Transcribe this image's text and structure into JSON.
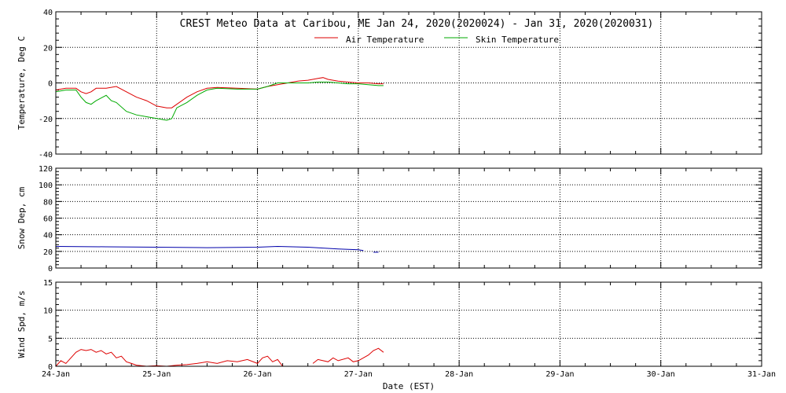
{
  "title": "CREST Meteo Data at Caribou, ME   Jan 24, 2020(2020024) - Jan 31, 2020(2020031)",
  "xlabel": "Date (EST)",
  "chart_data": [
    {
      "type": "line",
      "ylabel": "Temperature, Deg C",
      "ylim": [
        -40,
        40
      ],
      "yticks": [
        -40,
        -20,
        0,
        20,
        40
      ],
      "xlim": [
        0,
        7
      ],
      "x_tick_labels": [
        "24-Jan",
        "25-Jan",
        "26-Jan",
        "27-Jan",
        "28-Jan",
        "29-Jan",
        "30-Jan",
        "31-Jan"
      ],
      "grid": true,
      "legend_position": "top-center",
      "series": [
        {
          "name": "Air Temperature",
          "color": "#dd0000",
          "x": [
            0,
            0.1,
            0.2,
            0.25,
            0.3,
            0.35,
            0.4,
            0.5,
            0.6,
            0.7,
            0.8,
            0.9,
            1.0,
            1.1,
            1.15,
            1.2,
            1.3,
            1.4,
            1.5,
            1.6,
            1.8,
            2.0,
            2.1,
            2.2,
            2.3,
            2.4,
            2.5,
            2.6,
            2.65,
            2.7,
            2.8,
            2.9,
            3.0,
            3.1,
            3.2,
            3.25
          ],
          "y": [
            -4,
            -3,
            -3,
            -5,
            -6,
            -5,
            -3,
            -3,
            -2,
            -5,
            -8,
            -10,
            -13,
            -14,
            -14,
            -12,
            -8,
            -5,
            -3,
            -2.5,
            -3,
            -3.5,
            -2,
            -1,
            0,
            1,
            1.5,
            2.5,
            3,
            2,
            1,
            0.5,
            0,
            0,
            -0.5,
            -0.5
          ]
        },
        {
          "name": "Skin Temperature",
          "color": "#00aa00",
          "x": [
            0,
            0.1,
            0.2,
            0.25,
            0.3,
            0.35,
            0.4,
            0.5,
            0.55,
            0.6,
            0.7,
            0.8,
            0.9,
            1.0,
            1.1,
            1.15,
            1.2,
            1.3,
            1.4,
            1.5,
            1.6,
            1.8,
            2.0,
            2.1,
            2.2,
            2.3,
            2.4,
            2.5,
            2.6,
            2.65,
            2.7,
            2.8,
            2.9,
            3.0,
            3.1,
            3.2,
            3.25
          ],
          "y": [
            -5,
            -4,
            -4,
            -8,
            -11,
            -12,
            -10,
            -7,
            -10,
            -11,
            -16,
            -18,
            -19,
            -20,
            -21,
            -20,
            -14,
            -11,
            -7,
            -4,
            -3,
            -3.5,
            -3.5,
            -2,
            0,
            0,
            0,
            0,
            0.5,
            0.5,
            0.5,
            0,
            -0.5,
            -0.5,
            -1,
            -1.5,
            -1.5
          ]
        }
      ]
    },
    {
      "type": "line",
      "ylabel": "Snow Dep, cm",
      "ylim": [
        0,
        120
      ],
      "yticks": [
        0,
        20,
        40,
        60,
        80,
        100,
        120
      ],
      "xlim": [
        0,
        7
      ],
      "x_tick_labels": [
        "24-Jan",
        "25-Jan",
        "26-Jan",
        "27-Jan",
        "28-Jan",
        "29-Jan",
        "30-Jan",
        "31-Jan"
      ],
      "grid": true,
      "series": [
        {
          "color": "#0000aa",
          "x": [
            0,
            0.5,
            1.0,
            1.5,
            2.0,
            2.2,
            2.5,
            2.8,
            3.0,
            3.05
          ],
          "y": [
            26,
            25.5,
            25,
            24.5,
            25,
            26,
            25,
            23,
            22,
            21
          ]
        },
        {
          "color": "#0000aa",
          "x": [
            3.15,
            3.2
          ],
          "y": [
            19,
            19
          ]
        }
      ]
    },
    {
      "type": "line",
      "ylabel": "Wind Spd, m/s",
      "ylim": [
        0,
        15
      ],
      "yticks": [
        0,
        5,
        10,
        15
      ],
      "xlim": [
        0,
        7
      ],
      "x_tick_labels": [
        "24-Jan",
        "25-Jan",
        "26-Jan",
        "27-Jan",
        "28-Jan",
        "29-Jan",
        "30-Jan",
        "31-Jan"
      ],
      "grid": true,
      "series": [
        {
          "color": "#dd0000",
          "x": [
            0,
            0.05,
            0.1,
            0.15,
            0.2,
            0.25,
            0.3,
            0.35,
            0.4,
            0.45,
            0.5,
            0.55,
            0.6,
            0.65,
            0.7,
            0.75,
            0.8,
            0.9,
            1.0,
            1.1,
            1.2,
            1.3,
            1.4,
            1.5,
            1.6,
            1.7,
            1.8,
            1.9,
            2.0,
            2.05,
            2.1,
            2.15,
            2.2,
            2.25
          ],
          "y": [
            0,
            1,
            0.5,
            1.5,
            2.5,
            3,
            2.8,
            3,
            2.5,
            2.8,
            2.2,
            2.5,
            1.5,
            1.8,
            0.8,
            0.5,
            0.2,
            0,
            0.1,
            0,
            0.2,
            0.3,
            0.5,
            0.8,
            0.5,
            1,
            0.8,
            1.2,
            0.5,
            1.5,
            1.8,
            0.8,
            1.2,
            0
          ]
        },
        {
          "color": "#dd0000",
          "x": [
            2.55,
            2.6,
            2.7,
            2.75,
            2.8,
            2.9,
            2.95,
            3.0,
            3.05,
            3.1,
            3.15,
            3.2,
            3.25
          ],
          "y": [
            0.5,
            1.2,
            0.8,
            1.5,
            1.0,
            1.5,
            0.8,
            1.0,
            1.5,
            2.0,
            2.8,
            3.2,
            2.5
          ]
        }
      ]
    }
  ]
}
